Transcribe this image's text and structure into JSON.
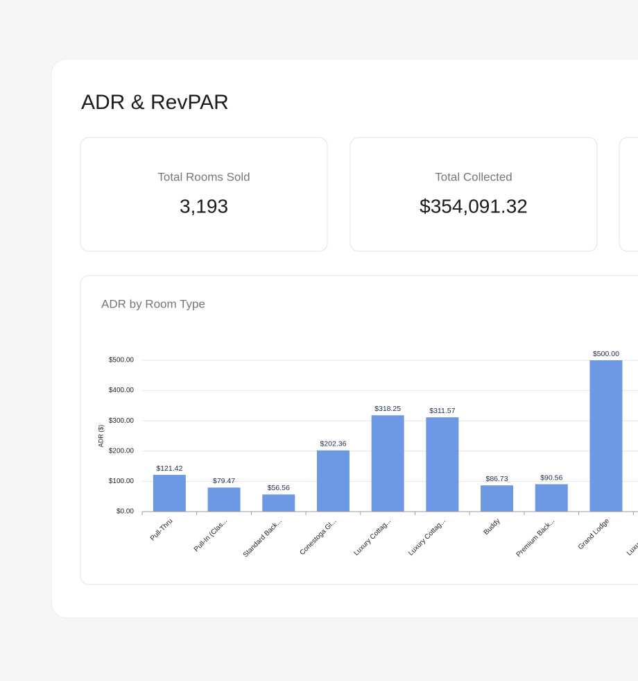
{
  "header": {
    "title": "ADR & RevPAR"
  },
  "kpis": [
    {
      "label": "Total Rooms Sold",
      "value": "3,193"
    },
    {
      "label": "Total Collected",
      "value": "$354,091.32"
    }
  ],
  "chart_data": {
    "type": "bar",
    "title": "ADR by Room Type",
    "y_label": "ADR ($)",
    "categories": [
      "Pull-Thru",
      "Pull-In (Clas...",
      "Standard Back...",
      "Conestoga Gl...",
      "Luxury Cottag...",
      "Luxury Cottag...",
      "Buddy",
      "Premium Back...",
      "Grand Lodge",
      "Luxury Cottag..."
    ],
    "values": [
      121.42,
      79.47,
      56.56,
      202.36,
      318.25,
      311.57,
      86.73,
      90.56,
      500,
      null
    ],
    "value_labels": [
      "$121.42",
      "$79.47",
      "$56.56",
      "$202.36",
      "$318.25",
      "$311.57",
      "$86.73",
      "$90.56",
      "$500.00",
      null
    ],
    "color": "#6d98e3",
    "ylim": [
      0,
      500
    ],
    "yticks": [
      {
        "value": 0,
        "label": "$0.00"
      },
      {
        "value": 100,
        "label": "$100.00"
      },
      {
        "value": 200,
        "label": "$200.00"
      },
      {
        "value": 300,
        "label": "$300.00"
      },
      {
        "value": 400,
        "label": "$400.00"
      },
      {
        "value": 500,
        "label": "$500.00"
      }
    ],
    "grid": true
  }
}
